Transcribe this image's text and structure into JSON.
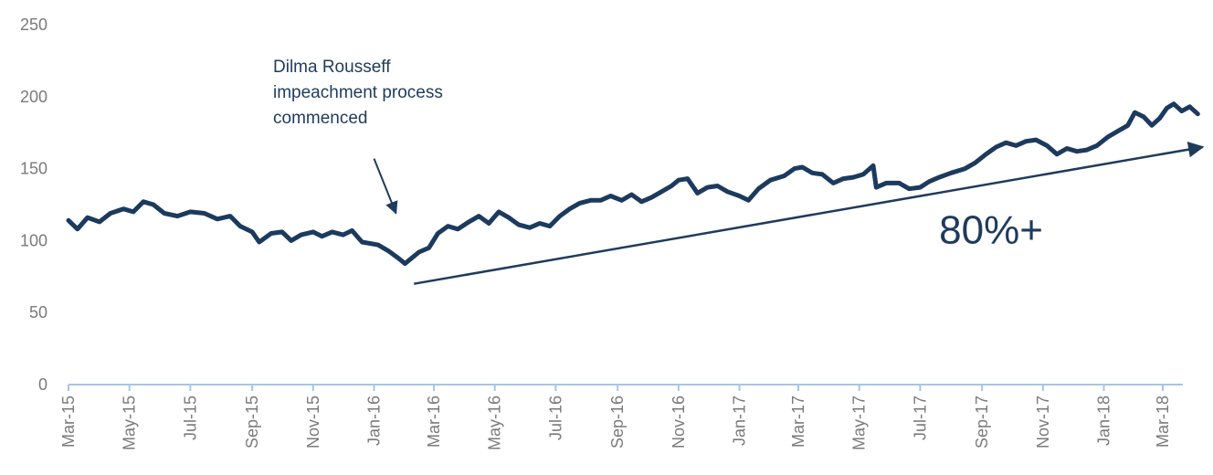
{
  "chart_data": {
    "type": "line",
    "title": "",
    "xlabel": "",
    "ylabel": "",
    "ylim": [
      0,
      250
    ],
    "yticks": [
      0,
      50,
      100,
      150,
      200,
      250
    ],
    "xlim": [
      "2015-03-01",
      "2018-04-10"
    ],
    "xticks": [
      "Mar-15",
      "May-15",
      "Jul-15",
      "Sep-15",
      "Nov-15",
      "Jan-16",
      "Mar-16",
      "May-16",
      "Jul-16",
      "Sep-16",
      "Nov-16",
      "Jan-17",
      "Mar-17",
      "May-17",
      "Jul-17",
      "Sep-17",
      "Nov-17",
      "Jan-18",
      "Mar-18"
    ],
    "grid": false,
    "legend": "none",
    "colors": {
      "line": "#1c3a5e",
      "axis": "#a9c4e4",
      "text": "#7a7a7a",
      "annotation": "#1f3b5c"
    },
    "series": [
      {
        "points": [
          [
            "2015-03-01",
            114
          ],
          [
            "2015-03-10",
            108
          ],
          [
            "2015-03-20",
            116
          ],
          [
            "2015-04-01",
            113
          ],
          [
            "2015-04-12",
            119
          ],
          [
            "2015-04-25",
            122
          ],
          [
            "2015-05-05",
            120
          ],
          [
            "2015-05-15",
            127
          ],
          [
            "2015-05-25",
            125
          ],
          [
            "2015-06-05",
            119
          ],
          [
            "2015-06-18",
            117
          ],
          [
            "2015-07-01",
            120
          ],
          [
            "2015-07-15",
            119
          ],
          [
            "2015-07-28",
            115
          ],
          [
            "2015-08-10",
            117
          ],
          [
            "2015-08-20",
            110
          ],
          [
            "2015-09-01",
            106
          ],
          [
            "2015-09-08",
            99
          ],
          [
            "2015-09-20",
            105
          ],
          [
            "2015-10-01",
            106
          ],
          [
            "2015-10-10",
            100
          ],
          [
            "2015-10-20",
            104
          ],
          [
            "2015-11-01",
            106
          ],
          [
            "2015-11-10",
            103
          ],
          [
            "2015-11-20",
            106
          ],
          [
            "2015-12-01",
            104
          ],
          [
            "2015-12-10",
            107
          ],
          [
            "2015-12-20",
            99
          ],
          [
            "2016-01-05",
            97
          ],
          [
            "2016-01-15",
            93
          ],
          [
            "2016-01-25",
            88
          ],
          [
            "2016-02-01",
            84
          ],
          [
            "2016-02-08",
            88
          ],
          [
            "2016-02-15",
            92
          ],
          [
            "2016-02-25",
            95
          ],
          [
            "2016-03-05",
            105
          ],
          [
            "2016-03-15",
            110
          ],
          [
            "2016-03-25",
            108
          ],
          [
            "2016-04-05",
            113
          ],
          [
            "2016-04-15",
            117
          ],
          [
            "2016-04-25",
            112
          ],
          [
            "2016-05-05",
            120
          ],
          [
            "2016-05-15",
            116
          ],
          [
            "2016-05-25",
            111
          ],
          [
            "2016-06-05",
            109
          ],
          [
            "2016-06-15",
            112
          ],
          [
            "2016-06-25",
            110
          ],
          [
            "2016-07-05",
            117
          ],
          [
            "2016-07-15",
            122
          ],
          [
            "2016-07-25",
            126
          ],
          [
            "2016-08-05",
            128
          ],
          [
            "2016-08-15",
            128
          ],
          [
            "2016-08-25",
            131
          ],
          [
            "2016-09-05",
            128
          ],
          [
            "2016-09-15",
            132
          ],
          [
            "2016-09-25",
            127
          ],
          [
            "2016-10-05",
            130
          ],
          [
            "2016-10-15",
            134
          ],
          [
            "2016-10-25",
            138
          ],
          [
            "2016-11-01",
            142
          ],
          [
            "2016-11-10",
            143
          ],
          [
            "2016-11-20",
            133
          ],
          [
            "2016-11-30",
            137
          ],
          [
            "2016-12-10",
            138
          ],
          [
            "2016-12-20",
            134
          ],
          [
            "2017-01-01",
            131
          ],
          [
            "2017-01-10",
            128
          ],
          [
            "2017-01-20",
            136
          ],
          [
            "2017-02-01",
            142
          ],
          [
            "2017-02-15",
            145
          ],
          [
            "2017-02-25",
            150
          ],
          [
            "2017-03-05",
            151
          ],
          [
            "2017-03-15",
            147
          ],
          [
            "2017-03-25",
            146
          ],
          [
            "2017-04-05",
            140
          ],
          [
            "2017-04-15",
            143
          ],
          [
            "2017-04-25",
            144
          ],
          [
            "2017-05-05",
            146
          ],
          [
            "2017-05-15",
            152
          ],
          [
            "2017-05-18",
            137
          ],
          [
            "2017-05-28",
            140
          ],
          [
            "2017-06-10",
            140
          ],
          [
            "2017-06-20",
            136
          ],
          [
            "2017-07-01",
            137
          ],
          [
            "2017-07-10",
            141
          ],
          [
            "2017-07-20",
            144
          ],
          [
            "2017-08-01",
            147
          ],
          [
            "2017-08-15",
            150
          ],
          [
            "2017-08-25",
            154
          ],
          [
            "2017-09-05",
            160
          ],
          [
            "2017-09-15",
            165
          ],
          [
            "2017-09-25",
            168
          ],
          [
            "2017-10-05",
            166
          ],
          [
            "2017-10-15",
            169
          ],
          [
            "2017-10-25",
            170
          ],
          [
            "2017-11-05",
            166
          ],
          [
            "2017-11-15",
            160
          ],
          [
            "2017-11-25",
            164
          ],
          [
            "2017-12-05",
            162
          ],
          [
            "2017-12-15",
            163
          ],
          [
            "2017-12-25",
            166
          ],
          [
            "2018-01-05",
            172
          ],
          [
            "2018-01-15",
            176
          ],
          [
            "2018-01-25",
            180
          ],
          [
            "2018-02-01",
            189
          ],
          [
            "2018-02-10",
            186
          ],
          [
            "2018-02-18",
            180
          ],
          [
            "2018-02-26",
            185
          ],
          [
            "2018-03-05",
            192
          ],
          [
            "2018-03-12",
            195
          ],
          [
            "2018-03-20",
            190
          ],
          [
            "2018-03-28",
            193
          ],
          [
            "2018-04-05",
            188
          ]
        ]
      }
    ],
    "annotations": {
      "event_lines": [
        "Dilma Rousseff",
        "impeachment process",
        "commenced"
      ],
      "event_arrow": {
        "from": [
          "2016-01-01",
          157
        ],
        "to": [
          "2016-01-23",
          119
        ]
      },
      "trend_arrow": {
        "from": [
          "2016-02-10",
          70
        ],
        "to": [
          "2018-04-10",
          165
        ]
      },
      "trend_label": "80%+",
      "trend_label_at": [
        "2017-07-20",
        98
      ]
    }
  }
}
